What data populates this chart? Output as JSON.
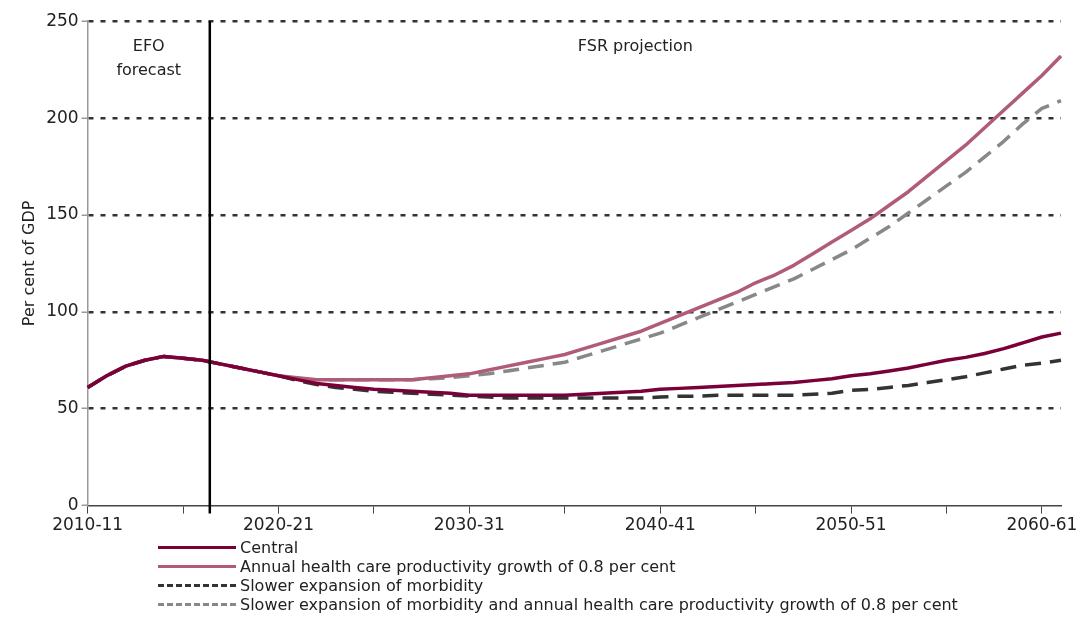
{
  "chart_data": {
    "type": "line",
    "ylabel": "Per cent of GDP",
    "categories": [
      "2010-11",
      null,
      null,
      null,
      null,
      null,
      null,
      null,
      null,
      null,
      "2020-21",
      null,
      null,
      null,
      null,
      null,
      null,
      null,
      null,
      null,
      "2030-31",
      null,
      null,
      null,
      null,
      null,
      null,
      null,
      null,
      null,
      "2040-41",
      null,
      null,
      null,
      null,
      null,
      null,
      null,
      null,
      null,
      "2050-51",
      null,
      null,
      null,
      null,
      null,
      null,
      null,
      null,
      null,
      "2060-61",
      null
    ],
    "ylim": [
      0,
      250
    ],
    "yticks": [
      0,
      50,
      100,
      150,
      200,
      250
    ],
    "grid": "y",
    "legend": "bottom",
    "marker": "none",
    "annotations": [
      "EFO forecast",
      "FSR projection"
    ],
    "series": [
      {
        "name": "Central",
        "color": "#7a0038",
        "line_style": "solid",
        "values": [
          61,
          67,
          72,
          75,
          77,
          76,
          75,
          73,
          71,
          69,
          67,
          65,
          63,
          62,
          61,
          60,
          59.5,
          59,
          58.5,
          58,
          57,
          57,
          57,
          57,
          57,
          57,
          57.5,
          58,
          58.5,
          59,
          60,
          60.5,
          61,
          61.5,
          62,
          62.5,
          63,
          63.5,
          64.5,
          65.5,
          67,
          68,
          69.5,
          71,
          73,
          75,
          76.5,
          78.5,
          81,
          84,
          87,
          89
        ]
      },
      {
        "name": "Annual health care productivity growth of 0.8 per cent",
        "color": "#b05c78",
        "line_style": "solid",
        "values": [
          61,
          67,
          72,
          75,
          77,
          76,
          75,
          73,
          71,
          69,
          67,
          66,
          65,
          65,
          65,
          65,
          65,
          65,
          66,
          67,
          68,
          70,
          72,
          74,
          76,
          78,
          81,
          84,
          87,
          90,
          94,
          98,
          102,
          106,
          110,
          115,
          119,
          124,
          130,
          136,
          142,
          148,
          155,
          162,
          170,
          178,
          186,
          195,
          204,
          213,
          222,
          232
        ]
      },
      {
        "name": "Slower expansion of morbidity",
        "color": "#333333",
        "line_style": "dashed",
        "values": [
          61,
          67,
          72,
          75,
          77,
          76,
          75,
          73,
          71,
          69,
          67,
          64.5,
          62.5,
          61,
          60,
          59,
          58.5,
          58,
          57.5,
          57,
          56.5,
          56,
          55.5,
          55.5,
          55.5,
          55.5,
          55.5,
          55.5,
          55.5,
          55.5,
          56,
          56.5,
          56.5,
          57,
          57,
          57,
          57,
          57,
          57.5,
          58,
          59.5,
          60,
          61,
          62,
          63.5,
          65,
          66.5,
          68.5,
          70.5,
          72.5,
          73.5,
          75
        ]
      },
      {
        "name": "Slower expansion of morbidity and annual health care productivity growth of 0.8 per cent",
        "color": "#888888",
        "line_style": "dashed",
        "values": [
          61,
          67,
          72,
          75,
          77,
          76,
          75,
          73,
          71,
          69,
          67,
          65,
          65,
          65,
          65,
          65,
          65,
          65,
          65.5,
          66,
          67,
          68,
          69.5,
          71,
          72.5,
          74,
          77,
          80,
          83,
          86,
          89,
          93,
          97,
          101,
          105,
          109,
          113,
          117,
          122,
          127,
          132,
          138,
          144,
          151,
          158,
          165,
          172,
          180,
          188,
          197,
          205,
          209
        ]
      }
    ]
  }
}
